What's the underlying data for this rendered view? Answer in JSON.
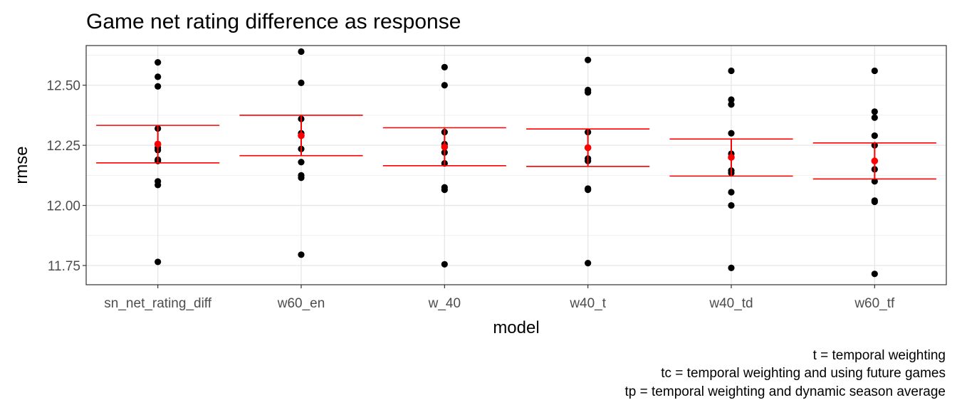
{
  "chart_data": {
    "type": "scatter",
    "title": "Game net rating difference as response",
    "xlabel": "model",
    "ylabel": "rmse",
    "categories": [
      "sn_net_rating_diff",
      "w60_en",
      "w_40",
      "w40_t",
      "w40_td",
      "w60_tf"
    ],
    "ylim": [
      11.67,
      12.665
    ],
    "yticks": [
      11.75,
      12.0,
      12.25,
      12.5
    ],
    "ytick_labels": [
      "11.75",
      "12.00",
      "12.25",
      "12.50"
    ],
    "grid": true,
    "points": [
      [
        12.595,
        12.535,
        12.495,
        12.32,
        12.24,
        12.23,
        12.19,
        12.185,
        12.1,
        12.085,
        11.765
      ],
      [
        12.64,
        12.51,
        12.36,
        12.3,
        12.29,
        12.235,
        12.18,
        12.125,
        12.115,
        11.795
      ],
      [
        12.575,
        12.5,
        12.305,
        12.255,
        12.245,
        12.22,
        12.175,
        12.075,
        12.065,
        11.755
      ],
      [
        12.605,
        12.48,
        12.47,
        12.305,
        12.24,
        12.195,
        12.185,
        12.07,
        12.065,
        11.76
      ],
      [
        12.56,
        12.44,
        12.42,
        12.3,
        12.215,
        12.2,
        12.145,
        12.135,
        12.055,
        12.0,
        11.74
      ],
      [
        12.56,
        12.39,
        12.365,
        12.29,
        12.25,
        12.15,
        12.1,
        12.02,
        12.015,
        11.715
      ]
    ],
    "summary": [
      {
        "mean": 12.255,
        "lower": 12.177,
        "upper": 12.333
      },
      {
        "mean": 12.29,
        "lower": 12.207,
        "upper": 12.375
      },
      {
        "mean": 12.243,
        "lower": 12.165,
        "upper": 12.323
      },
      {
        "mean": 12.24,
        "lower": 12.162,
        "upper": 12.318
      },
      {
        "mean": 12.2,
        "lower": 12.122,
        "upper": 12.276
      },
      {
        "mean": 12.185,
        "lower": 12.11,
        "upper": 12.26
      }
    ],
    "point_color": "#000000",
    "summary_color": "#ff0000",
    "caption": [
      "t = temporal weighting",
      "tc = temporal weighting and using future games",
      "tp = temporal weighting and dynamic season average"
    ]
  }
}
